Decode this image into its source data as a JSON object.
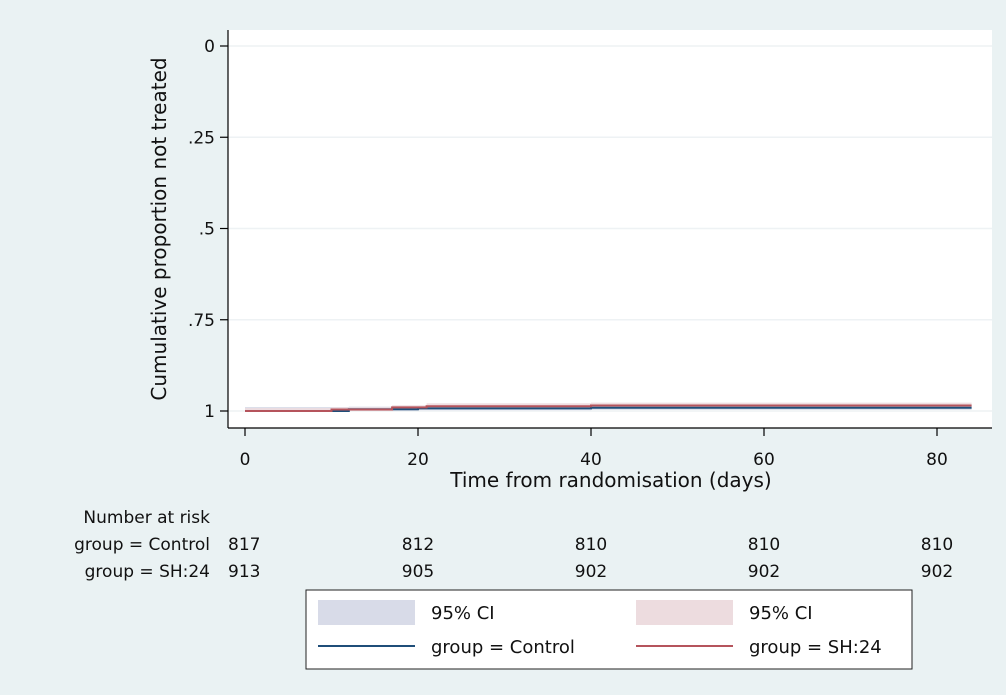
{
  "chart_data": {
    "type": "line",
    "title": "",
    "xlabel": "Time from randomisation (days)",
    "ylabel": "Cumulative proportion not treated",
    "xlim": [
      0,
      84
    ],
    "ylim": [
      0,
      1
    ],
    "x_ticks": [
      0,
      20,
      40,
      60,
      80
    ],
    "x_tick_labels": [
      "0",
      "20",
      "40",
      "60",
      "80"
    ],
    "y_ticks": [
      0,
      0.25,
      0.5,
      0.75,
      1
    ],
    "y_tick_labels": [
      "0",
      ".25",
      ".5",
      ".75",
      "1"
    ],
    "grid": "horizontal",
    "series": [
      {
        "name": "group = Control",
        "color": "#1f4e79",
        "steps": [
          [
            0,
            1.0
          ],
          [
            12,
            0.995
          ],
          [
            20,
            0.993
          ],
          [
            40,
            0.991
          ],
          [
            84,
            0.991
          ]
        ],
        "ci_color": "#d8dbe8",
        "ci_lower": [
          [
            0,
            0.989
          ],
          [
            12,
            0.988
          ],
          [
            20,
            0.986
          ],
          [
            40,
            0.984
          ],
          [
            84,
            0.984
          ]
        ],
        "ci_upper": [
          [
            0,
            1.0
          ],
          [
            12,
            1.0
          ],
          [
            20,
            0.998
          ],
          [
            40,
            0.997
          ],
          [
            84,
            0.997
          ]
        ]
      },
      {
        "name": "group = SH:24",
        "color": "#b5545c",
        "steps": [
          [
            0,
            1.0
          ],
          [
            10,
            0.996
          ],
          [
            17,
            0.99
          ],
          [
            21,
            0.987
          ],
          [
            40,
            0.985
          ],
          [
            84,
            0.985
          ]
        ],
        "ci_color": "#eddcdf",
        "ci_lower": [
          [
            0,
            0.992
          ],
          [
            10,
            0.99
          ],
          [
            17,
            0.984
          ],
          [
            21,
            0.979
          ],
          [
            40,
            0.977
          ],
          [
            84,
            0.977
          ]
        ],
        "ci_upper": [
          [
            0,
            1.0
          ],
          [
            10,
            1.0
          ],
          [
            17,
            0.996
          ],
          [
            21,
            0.993
          ],
          [
            40,
            0.991
          ],
          [
            84,
            0.991
          ]
        ]
      }
    ],
    "risk_table": {
      "title": "Number at risk",
      "times": [
        0,
        20,
        40,
        60,
        80
      ],
      "rows": [
        {
          "label": "group = Control",
          "counts": [
            "817",
            "812",
            "810",
            "810",
            "810"
          ]
        },
        {
          "label": "group = SH:24",
          "counts": [
            "913",
            "905",
            "902",
            "902",
            "902"
          ]
        }
      ]
    },
    "legend": {
      "position": "bottom",
      "items": [
        {
          "label": "95% CI",
          "kind": "ci",
          "series": 0
        },
        {
          "label": "95% CI",
          "kind": "ci",
          "series": 1
        },
        {
          "label": "group = Control",
          "kind": "line",
          "series": 0
        },
        {
          "label": "group = SH:24",
          "kind": "line",
          "series": 1
        }
      ]
    }
  }
}
